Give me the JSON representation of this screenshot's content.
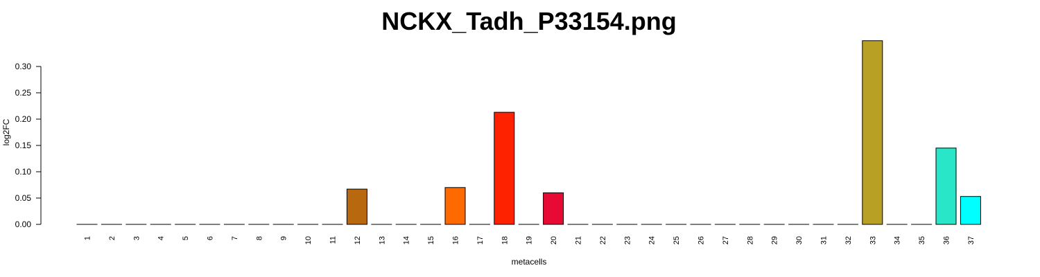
{
  "chart_data": {
    "type": "bar",
    "title": "NCKX_Tadh_P33154.png",
    "xlabel": "metacells",
    "ylabel": "log2FC",
    "ylim": [
      0,
      0.35
    ],
    "yticks": [
      0.0,
      0.05,
      0.1,
      0.15,
      0.2,
      0.25,
      0.3
    ],
    "ytick_labels": [
      "0.00",
      "0.05",
      "0.10",
      "0.15",
      "0.20",
      "0.25",
      "0.30"
    ],
    "categories": [
      "1",
      "2",
      "3",
      "4",
      "5",
      "6",
      "7",
      "8",
      "9",
      "10",
      "11",
      "12",
      "13",
      "14",
      "15",
      "16",
      "17",
      "18",
      "19",
      "20",
      "21",
      "22",
      "23",
      "24",
      "25",
      "26",
      "27",
      "28",
      "29",
      "30",
      "31",
      "32",
      "33",
      "34",
      "35",
      "36",
      "37"
    ],
    "values": [
      0,
      0,
      0,
      0,
      0,
      0,
      0,
      0,
      0,
      0,
      0,
      0.067,
      0,
      0,
      0,
      0.07,
      0,
      0.213,
      0,
      0.06,
      0,
      0,
      0,
      0,
      0,
      0,
      0,
      0,
      0,
      0,
      0,
      0,
      0.349,
      0,
      0,
      0.145,
      0.053
    ],
    "colors": [
      "#FFFFFF",
      "#FFFFFF",
      "#FFFFFF",
      "#FFFFFF",
      "#FFFFFF",
      "#FFFFFF",
      "#FFFFFF",
      "#FFFFFF",
      "#FFFFFF",
      "#FFFFFF",
      "#FFFFFF",
      "#B8680E",
      "#FFFFFF",
      "#FFFFFF",
      "#FFFFFF",
      "#FF6A00",
      "#FFFFFF",
      "#FF2200",
      "#FFFFFF",
      "#E60A35",
      "#FFFFFF",
      "#FFFFFF",
      "#FFFFFF",
      "#FFFFFF",
      "#FFFFFF",
      "#FFFFFF",
      "#FFFFFF",
      "#FFFFFF",
      "#FFFFFF",
      "#FFFFFF",
      "#FFFFFF",
      "#FFFFFF",
      "#B8A025",
      "#FFFFFF",
      "#FFFFFF",
      "#2AE6C8",
      "#00FFFF"
    ],
    "grid": false,
    "legend": "none"
  }
}
